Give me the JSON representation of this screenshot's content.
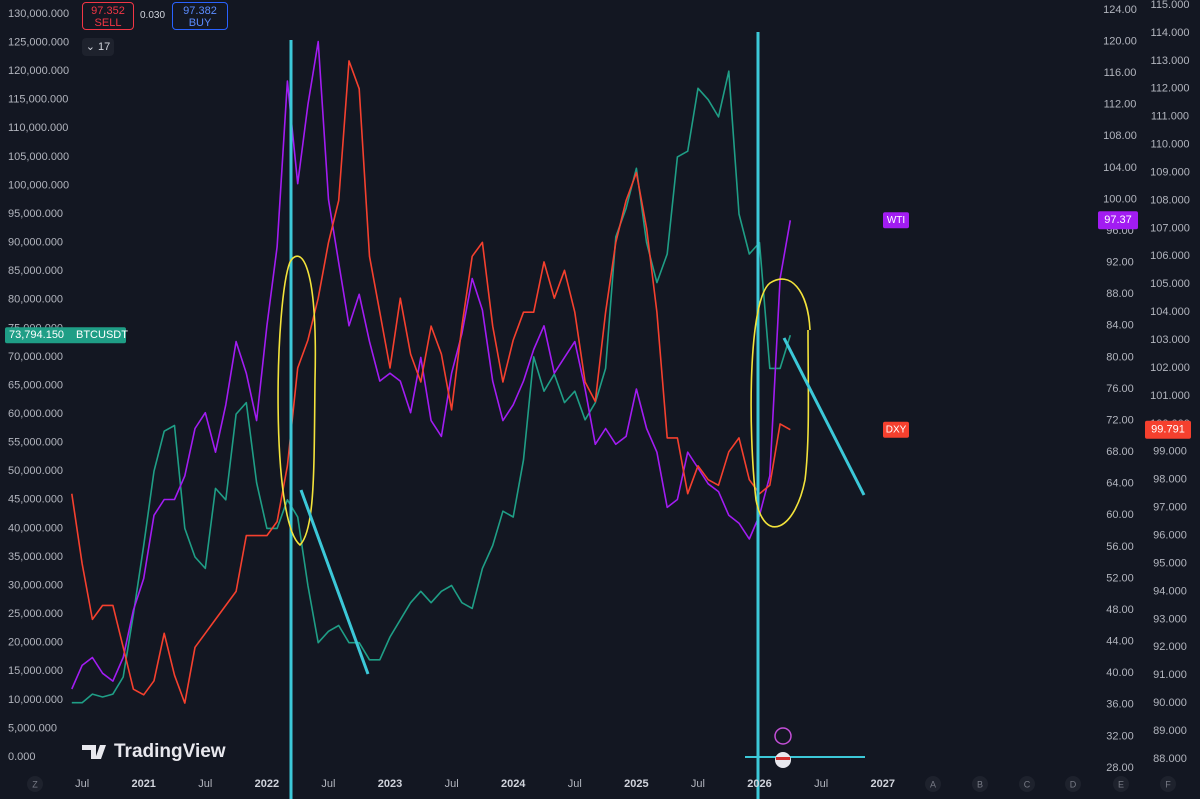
{
  "chart_data": {
    "type": "line",
    "x": [
      "2020-06",
      "2020-07",
      "2020-08",
      "2020-09",
      "2020-10",
      "2020-11",
      "2020-12",
      "2021-01",
      "2021-02",
      "2021-03",
      "2021-04",
      "2021-05",
      "2021-06",
      "2021-07",
      "2021-08",
      "2021-09",
      "2021-10",
      "2021-11",
      "2021-12",
      "2022-01",
      "2022-02",
      "2022-03",
      "2022-04",
      "2022-05",
      "2022-06",
      "2022-07",
      "2022-08",
      "2022-09",
      "2022-10",
      "2022-11",
      "2022-12",
      "2023-01",
      "2023-02",
      "2023-03",
      "2023-04",
      "2023-05",
      "2023-06",
      "2023-07",
      "2023-08",
      "2023-09",
      "2023-10",
      "2023-11",
      "2023-12",
      "2024-01",
      "2024-02",
      "2024-03",
      "2024-04",
      "2024-05",
      "2024-06",
      "2024-07",
      "2024-08",
      "2024-09",
      "2024-10",
      "2024-11",
      "2024-12",
      "2025-01",
      "2025-02",
      "2025-03",
      "2025-04",
      "2025-05",
      "2025-06",
      "2025-07",
      "2025-08",
      "2025-09",
      "2025-10",
      "2025-11",
      "2025-12",
      "2026-01",
      "2026-02",
      "2026-03",
      "2026-04"
    ],
    "xlim": [
      "2019-11",
      "2028-09"
    ],
    "xticks": [
      {
        "value": "2020-07",
        "label": "Jul"
      },
      {
        "value": "2021-01",
        "label": "2021"
      },
      {
        "value": "2021-07",
        "label": "Jul"
      },
      {
        "value": "2022-01",
        "label": "2022"
      },
      {
        "value": "2022-07",
        "label": "Jul"
      },
      {
        "value": "2023-01",
        "label": "2023"
      },
      {
        "value": "2023-07",
        "label": "Jul"
      },
      {
        "value": "2024-01",
        "label": "2024"
      },
      {
        "value": "2024-07",
        "label": "Jul"
      },
      {
        "value": "2025-01",
        "label": "2025"
      },
      {
        "value": "2025-07",
        "label": "Jul"
      },
      {
        "value": "2026-01",
        "label": "2026"
      },
      {
        "value": "2026-07",
        "label": "Jul"
      },
      {
        "value": "2027-01",
        "label": "2027"
      }
    ],
    "ylim": [
      0,
      130000
    ],
    "yticks": [
      {
        "value": 0,
        "label": "0.000"
      },
      {
        "value": 5000,
        "label": "5,000.000"
      },
      {
        "value": 10000,
        "label": "10,000.000"
      },
      {
        "value": 15000,
        "label": "15,000.000"
      },
      {
        "value": 20000,
        "label": "20,000.000"
      },
      {
        "value": 25000,
        "label": "25,000.000"
      },
      {
        "value": 30000,
        "label": "30,000.000"
      },
      {
        "value": 35000,
        "label": "35,000.000"
      },
      {
        "value": 40000,
        "label": "40,000.000"
      },
      {
        "value": 45000,
        "label": "45,000.000"
      },
      {
        "value": 50000,
        "label": "50,000.000"
      },
      {
        "value": 55000,
        "label": "55,000.000"
      },
      {
        "value": 60000,
        "label": "60,000.000"
      },
      {
        "value": 65000,
        "label": "65,000.000"
      },
      {
        "value": 70000,
        "label": "70,000.000"
      },
      {
        "value": 75000,
        "label": "75,000.000"
      },
      {
        "value": 80000,
        "label": "80,000.000"
      },
      {
        "value": 85000,
        "label": "85,000.000"
      },
      {
        "value": 90000,
        "label": "90,000.000"
      },
      {
        "value": 95000,
        "label": "95,000.000"
      },
      {
        "value": 100000,
        "label": "100,000.000"
      },
      {
        "value": 105000,
        "label": "105,000.000"
      },
      {
        "value": 110000,
        "label": "110,000.000"
      },
      {
        "value": 115000,
        "label": "115,000.000"
      },
      {
        "value": 120000,
        "label": "120,000.000"
      },
      {
        "value": 125000,
        "label": "125,000.000"
      },
      {
        "value": 130000,
        "label": "130,000.000"
      }
    ],
    "y2lim": [
      28,
      124
    ],
    "y2ticks": [
      {
        "value": 28,
        "label": "28.00"
      },
      {
        "value": 32,
        "label": "32.00"
      },
      {
        "value": 36,
        "label": "36.00"
      },
      {
        "value": 40,
        "label": "40.00"
      },
      {
        "value": 44,
        "label": "44.00"
      },
      {
        "value": 48,
        "label": "48.00"
      },
      {
        "value": 52,
        "label": "52.00"
      },
      {
        "value": 56,
        "label": "56.00"
      },
      {
        "value": 60,
        "label": "60.00"
      },
      {
        "value": 64,
        "label": "64.00"
      },
      {
        "value": 68,
        "label": "68.00"
      },
      {
        "value": 72,
        "label": "72.00"
      },
      {
        "value": 76,
        "label": "76.00"
      },
      {
        "value": 80,
        "label": "80.00"
      },
      {
        "value": 84,
        "label": "84.00"
      },
      {
        "value": 88,
        "label": "88.00"
      },
      {
        "value": 92,
        "label": "92.00"
      },
      {
        "value": 96,
        "label": "96.00"
      },
      {
        "value": 100,
        "label": "100.00"
      },
      {
        "value": 104,
        "label": "104.00"
      },
      {
        "value": 108,
        "label": "108.00"
      },
      {
        "value": 112,
        "label": "112.00"
      },
      {
        "value": 116,
        "label": "116.00"
      },
      {
        "value": 120,
        "label": "120.00"
      },
      {
        "value": 124,
        "label": "124.00"
      }
    ],
    "y3lim": [
      88,
      115
    ],
    "y3ticks": [
      {
        "value": 88,
        "label": "88.000"
      },
      {
        "value": 89,
        "label": "89.000"
      },
      {
        "value": 90,
        "label": "90.000"
      },
      {
        "value": 91,
        "label": "91.000"
      },
      {
        "value": 92,
        "label": "92.000"
      },
      {
        "value": 93,
        "label": "93.000"
      },
      {
        "value": 94,
        "label": "94.000"
      },
      {
        "value": 95,
        "label": "95.000"
      },
      {
        "value": 96,
        "label": "96.000"
      },
      {
        "value": 97,
        "label": "97.000"
      },
      {
        "value": 98,
        "label": "98.000"
      },
      {
        "value": 99,
        "label": "99.000"
      },
      {
        "value": 100,
        "label": "100.000"
      },
      {
        "value": 101,
        "label": "101.000"
      },
      {
        "value": 102,
        "label": "102.000"
      },
      {
        "value": 103,
        "label": "103.000"
      },
      {
        "value": 104,
        "label": "104.000"
      },
      {
        "value": 105,
        "label": "105.000"
      },
      {
        "value": 106,
        "label": "106.000"
      },
      {
        "value": 107,
        "label": "107.000"
      },
      {
        "value": 108,
        "label": "108.000"
      },
      {
        "value": 109,
        "label": "109.000"
      },
      {
        "value": 110,
        "label": "110.000"
      },
      {
        "value": 111,
        "label": "111.000"
      },
      {
        "value": 112,
        "label": "112.000"
      },
      {
        "value": 113,
        "label": "113.000"
      },
      {
        "value": 114,
        "label": "114.000"
      },
      {
        "value": 115,
        "label": "115.000"
      }
    ],
    "series": [
      {
        "name": "BTCUSDT",
        "color": "#1f9e86",
        "axis": "y",
        "values": [
          9500,
          9500,
          11000,
          10500,
          11000,
          14000,
          25000,
          37000,
          50000,
          57000,
          58000,
          40000,
          35000,
          33000,
          47000,
          45000,
          60000,
          62000,
          48000,
          40000,
          40000,
          45000,
          42000,
          30000,
          20000,
          22000,
          23000,
          20000,
          20000,
          17000,
          17000,
          21000,
          24000,
          27000,
          29000,
          27000,
          29000,
          30000,
          27000,
          26000,
          33000,
          37000,
          43000,
          42000,
          52000,
          70000,
          64000,
          67000,
          62000,
          64000,
          59000,
          62000,
          68000,
          91000,
          96000,
          103000,
          90000,
          83000,
          88000,
          105000,
          106000,
          117000,
          115000,
          112000,
          120000,
          95000,
          88000,
          90000,
          68000,
          68000,
          73794.15
        ],
        "value_labels": [
          null,
          null,
          null,
          null,
          null,
          null,
          null,
          null,
          null,
          null,
          null,
          null,
          null,
          null,
          null,
          null,
          null,
          null,
          null,
          null,
          null,
          null,
          null,
          null,
          null,
          null,
          null,
          null,
          null,
          null,
          null,
          null,
          null,
          null,
          null,
          null,
          null,
          null,
          null,
          null,
          null,
          null,
          null,
          null,
          null,
          null,
          null,
          null,
          null,
          null,
          null,
          null,
          null,
          null,
          null,
          null,
          null,
          null,
          null,
          null,
          null,
          null,
          null,
          null,
          null,
          null,
          null,
          null,
          null,
          null,
          "73,794.150"
        ]
      },
      {
        "name": "WTI",
        "color": "#a21cf2",
        "axis": "y2",
        "values": [
          38,
          41,
          42,
          40,
          39,
          42,
          48,
          52,
          60,
          62,
          62,
          65,
          71,
          73,
          68,
          74,
          82,
          78,
          72,
          84,
          94,
          115,
          102,
          112,
          120,
          100,
          92,
          84,
          88,
          82,
          77,
          78,
          77,
          73,
          80,
          72,
          70,
          78,
          83,
          90,
          86,
          77,
          72,
          74,
          77,
          81,
          84,
          78,
          80,
          82,
          76,
          69,
          71,
          69,
          70,
          76,
          71,
          68,
          61,
          62,
          68,
          66,
          64,
          63,
          60,
          59,
          57,
          60,
          65,
          90,
          97.37
        ]
      },
      {
        "name": "DXY",
        "color": "#f5402e",
        "axis": "y3",
        "values": [
          97.5,
          95,
          93,
          93.5,
          93.5,
          92,
          90.5,
          90.3,
          90.8,
          92.5,
          91,
          90,
          92,
          92.5,
          93,
          93.5,
          94,
          96,
          96,
          96,
          96.5,
          98.5,
          102,
          103,
          104.5,
          106.5,
          108,
          113,
          112,
          106,
          104,
          102,
          104.5,
          102.5,
          101.5,
          103.5,
          102.5,
          100.5,
          103.5,
          106,
          106.5,
          103.5,
          101.5,
          103,
          104,
          104,
          105.8,
          104.5,
          105.5,
          104,
          101.5,
          100.8,
          104,
          106.5,
          108,
          109,
          107,
          104,
          99.5,
          99.5,
          97.5,
          98.5,
          98,
          97.8,
          99,
          99.5,
          98,
          97.5,
          97.8,
          100,
          99.791
        ]
      }
    ]
  },
  "ui": {
    "sell_price": "97.352",
    "sell_label": "SELL",
    "spread": "0.030",
    "buy_price": "97.382",
    "buy_label": "BUY",
    "interval": "17",
    "watermark": "TradingView",
    "bottom_buttons": [
      "Z",
      "A",
      "B",
      "C",
      "D",
      "E",
      "F"
    ]
  }
}
